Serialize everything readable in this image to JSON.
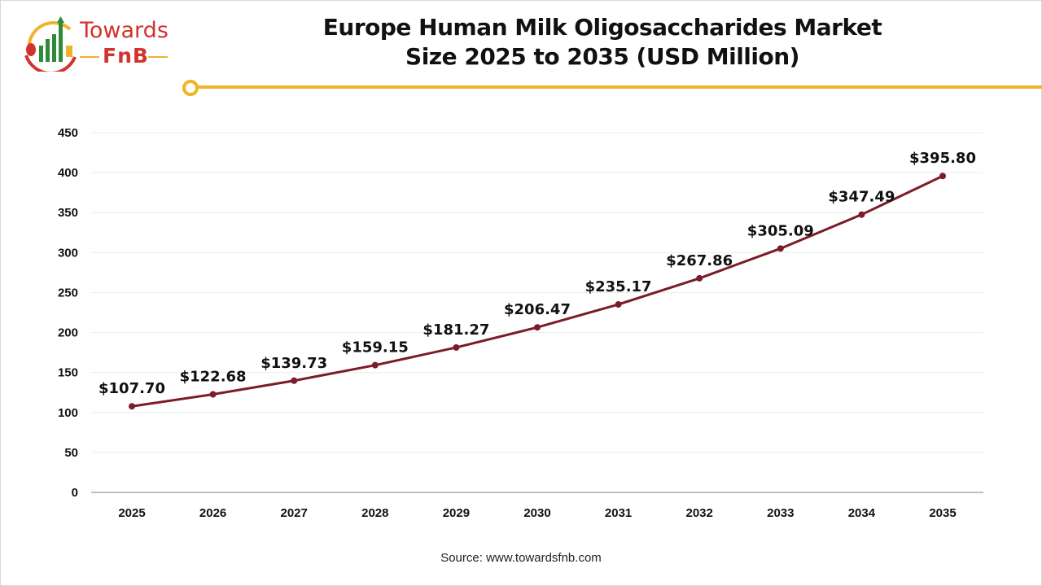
{
  "logo": {
    "line1": "Towards",
    "line2": "FnB"
  },
  "chart_data": {
    "type": "line",
    "title": "Europe Human Milk Oligosaccharides Market Size 2025 to 2035 (USD Million)",
    "title_lines": [
      "Europe Human Milk Oligosaccharides Market",
      "Size 2025 to 2035 (USD Million)"
    ],
    "categories": [
      "2025",
      "2026",
      "2027",
      "2028",
      "2029",
      "2030",
      "2031",
      "2032",
      "2033",
      "2034",
      "2035"
    ],
    "values": [
      107.7,
      122.68,
      139.73,
      159.15,
      181.27,
      206.47,
      235.17,
      267.86,
      305.09,
      347.49,
      395.8
    ],
    "data_labels": [
      "$107.70",
      "$122.68",
      "$139.73",
      "$159.15",
      "$181.27",
      "$206.47",
      "$235.17",
      "$267.86",
      "$305.09",
      "$347.49",
      "$395.80"
    ],
    "ylim": [
      0,
      450
    ],
    "yticks": [
      0,
      50,
      100,
      150,
      200,
      250,
      300,
      350,
      400,
      450
    ],
    "grid": true,
    "legend": "none",
    "line_color": "#7b1c26"
  },
  "source": "Source: www.towardsfnb.com",
  "colors": {
    "accent": "#f0b429",
    "brand_red": "#d2332f",
    "brand_green": "#2e8b3a"
  }
}
